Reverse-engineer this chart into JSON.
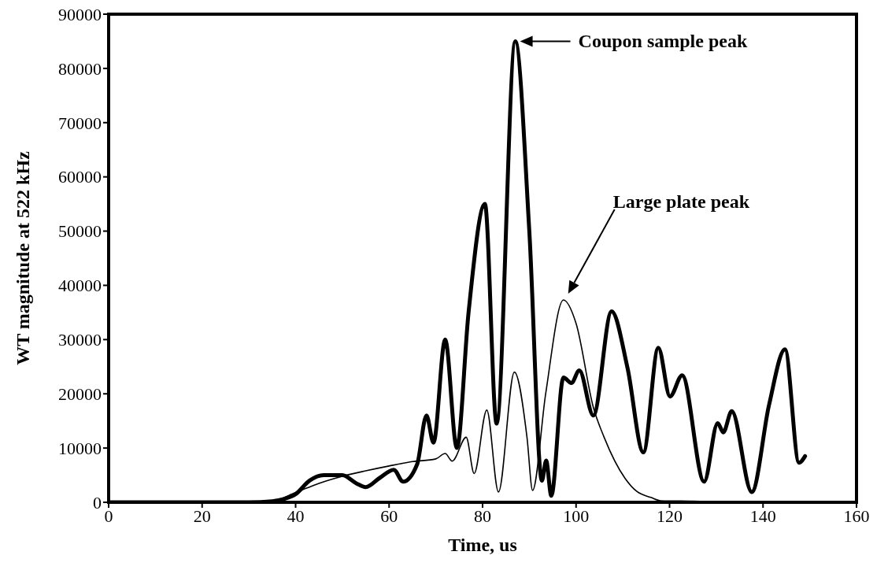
{
  "chart_data": {
    "type": "line",
    "xlabel": "Time, us",
    "ylabel": "WT magnitude at 522 kHz",
    "xlim": [
      0,
      160
    ],
    "xticks": [
      0,
      20,
      40,
      60,
      80,
      100,
      120,
      140,
      160
    ],
    "ylim": [
      0,
      90000
    ],
    "yticks": [
      0,
      10000,
      20000,
      30000,
      40000,
      50000,
      60000,
      70000,
      80000,
      90000
    ],
    "marker": "none",
    "line_style": "solid",
    "series": [
      {
        "color": "#000000",
        "x": [
          0,
          10,
          20,
          30,
          35,
          37.5,
          40,
          43,
          46,
          50,
          53,
          55,
          58,
          61,
          63,
          66,
          68,
          69.5,
          72,
          74.5,
          77,
          80.5,
          83,
          87,
          90,
          92.7,
          93.6,
          94.7,
          97.3,
          99,
          100.7,
          103.7,
          107.6,
          111,
          114.4,
          117.6,
          120.1,
          122.7,
          127.4,
          130.3,
          131.5,
          133.3,
          137.6,
          141.3,
          144.7,
          147.7,
          149
        ],
        "values": [
          0,
          0,
          0,
          0,
          200,
          600,
          1500,
          4000,
          5000,
          5000,
          3500,
          2800,
          4500,
          6000,
          3800,
          7000,
          16000,
          11000,
          30000,
          10000,
          35000,
          55000,
          14500,
          85000,
          50000,
          4000,
          7700,
          1200,
          23000,
          22000,
          24300,
          16000,
          35200,
          24800,
          9200,
          28500,
          19500,
          23400,
          3800,
          14600,
          12900,
          16800,
          1900,
          18000,
          28200,
          7300,
          8500
        ]
      },
      {
        "color": "#000000",
        "x": [
          0,
          10,
          20,
          30,
          35,
          40,
          45,
          50,
          55,
          60,
          65,
          70,
          72,
          73.5,
          76.5,
          78.2,
          80.9,
          83.4,
          86.8,
          89.5,
          90.7,
          93.5,
          97.3,
          100,
          103.7,
          106,
          110.5,
          113,
          116,
          118,
          125,
          135,
          149
        ],
        "values": [
          0,
          0,
          0,
          0,
          200,
          1800,
          3500,
          4800,
          5800,
          6700,
          7500,
          8000,
          9000,
          7600,
          12000,
          5300,
          17000,
          1900,
          24000,
          12000,
          2200,
          20000,
          37300,
          33000,
          17500,
          12000,
          4400,
          2000,
          900,
          300,
          200,
          0,
          0
        ]
      }
    ],
    "annotations": [
      "Coupon sample peak",
      "Large plate peak"
    ]
  }
}
